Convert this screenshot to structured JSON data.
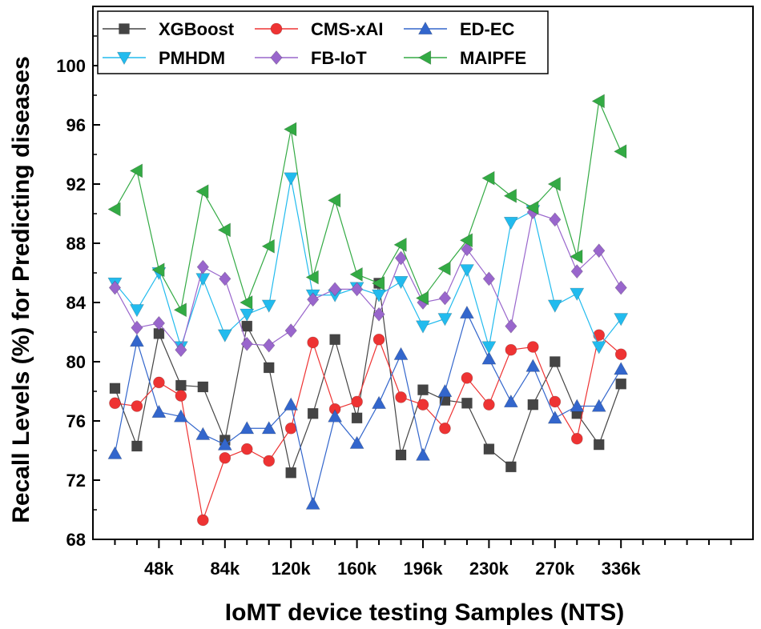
{
  "chart_data": {
    "type": "line",
    "title": "",
    "xlabel": "IoMT device testing Samples (NTS)",
    "ylabel": "Recall Levels (%) for Predicting diseases",
    "ylim": [
      68,
      104
    ],
    "yticks": [
      68,
      72,
      76,
      80,
      84,
      88,
      92,
      96,
      100
    ],
    "xlim": [
      0,
      30
    ],
    "x": [
      1,
      2,
      3,
      4,
      5,
      6,
      7,
      8,
      9,
      10,
      11,
      12,
      13,
      14,
      15,
      16,
      17,
      18,
      19,
      20,
      21,
      22,
      23,
      24,
      25,
      26,
      27
    ],
    "xticks": [
      {
        "pos": 3,
        "label": "48k"
      },
      {
        "pos": 6,
        "label": "84k"
      },
      {
        "pos": 9,
        "label": "120k"
      },
      {
        "pos": 12,
        "label": "160k"
      },
      {
        "pos": 15,
        "label": "196k"
      },
      {
        "pos": 18,
        "label": "230k"
      },
      {
        "pos": 21,
        "label": "270k"
      },
      {
        "pos": 24,
        "label": "336k"
      }
    ],
    "legend_position": "top-left",
    "grid": false,
    "series": [
      {
        "name": "XGBoost",
        "color": "#444444",
        "marker": "square",
        "values": [
          78.2,
          74.3,
          81.9,
          78.4,
          78.3,
          74.7,
          82.4,
          79.6,
          72.5,
          76.5,
          81.5,
          76.2,
          85.3,
          73.7,
          78.1,
          77.4,
          77.2,
          74.1,
          72.9,
          77.1,
          80.0,
          76.5,
          74.4,
          78.5,
          null,
          null,
          null
        ]
      },
      {
        "name": "CMS-xAI",
        "color": "#ee3333",
        "marker": "circle",
        "values": [
          77.2,
          77.0,
          78.6,
          77.7,
          69.3,
          73.5,
          74.1,
          73.3,
          75.5,
          81.3,
          76.8,
          77.3,
          81.5,
          77.6,
          77.1,
          75.5,
          78.9,
          77.1,
          80.8,
          81.0,
          77.3,
          74.8,
          81.8,
          80.5,
          null,
          null,
          null
        ]
      },
      {
        "name": "ED-EC",
        "color": "#3366cc",
        "marker": "triangle-up",
        "values": [
          73.8,
          81.4,
          76.6,
          76.3,
          75.1,
          74.4,
          75.5,
          75.5,
          77.1,
          70.4,
          76.3,
          74.5,
          77.2,
          80.5,
          73.7,
          78.0,
          83.3,
          80.2,
          77.3,
          79.7,
          76.2,
          77.0,
          77.0,
          79.5,
          null,
          null,
          null
        ]
      },
      {
        "name": "PMHDM",
        "color": "#22bbee",
        "marker": "triangle-down",
        "values": [
          85.3,
          83.5,
          86.0,
          81.0,
          85.6,
          81.8,
          83.2,
          83.8,
          92.4,
          84.5,
          84.5,
          85.0,
          84.5,
          85.4,
          82.4,
          82.9,
          86.2,
          81.0,
          89.4,
          90.2,
          83.8,
          84.6,
          81.0,
          82.9,
          null,
          null,
          null
        ]
      },
      {
        "name": "FB-IoT",
        "color": "#9966cc",
        "marker": "diamond",
        "values": [
          85.0,
          82.3,
          82.6,
          80.8,
          86.4,
          85.6,
          81.2,
          81.1,
          82.1,
          84.2,
          84.9,
          84.9,
          83.2,
          87.0,
          84.0,
          84.3,
          87.6,
          85.6,
          82.4,
          90.1,
          89.6,
          86.1,
          87.5,
          85.0,
          null,
          null,
          null
        ]
      },
      {
        "name": "MAIPFE",
        "color": "#33aa44",
        "marker": "triangle-left",
        "values": [
          90.3,
          92.9,
          86.2,
          83.5,
          91.5,
          88.9,
          84.0,
          87.8,
          95.7,
          85.7,
          90.9,
          85.9,
          85.3,
          87.9,
          84.3,
          86.3,
          88.2,
          92.4,
          91.2,
          90.4,
          92.0,
          87.1,
          97.6,
          94.2,
          null,
          null,
          null
        ]
      }
    ]
  }
}
